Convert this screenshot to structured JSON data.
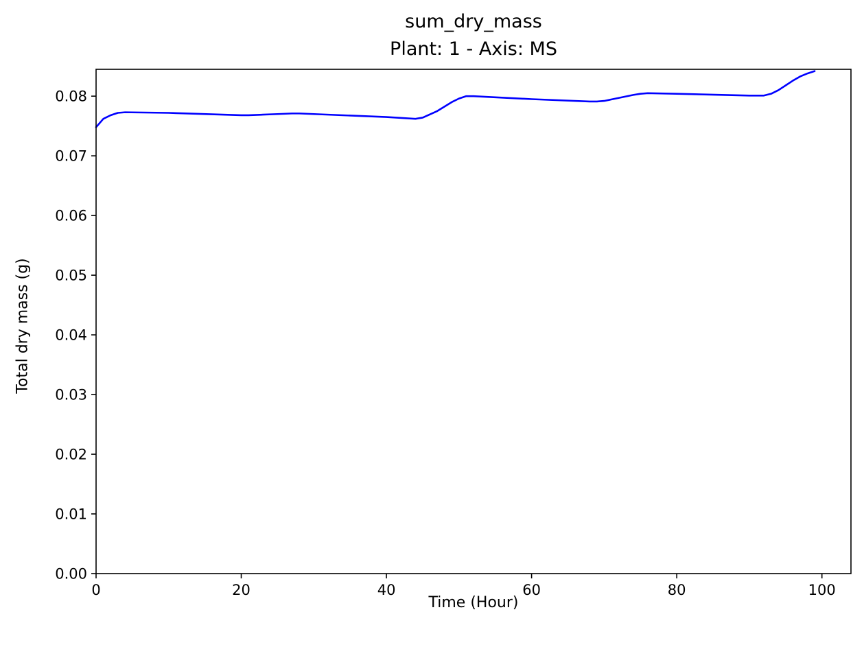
{
  "chart_data": {
    "type": "line",
    "title": "sum_dry_mass",
    "subtitle": "Plant: 1 - Axis: MS",
    "xlabel": "Time (Hour)",
    "ylabel": "Total dry mass (g)",
    "xlim": [
      0,
      104
    ],
    "ylim": [
      0,
      0.0845
    ],
    "xticks": [
      0,
      20,
      40,
      60,
      80,
      100
    ],
    "xtick_labels": [
      "0",
      "20",
      "40",
      "60",
      "80",
      "100"
    ],
    "yticks": [
      0,
      0.01,
      0.02,
      0.03,
      0.04,
      0.05,
      0.06,
      0.07,
      0.08
    ],
    "ytick_labels": [
      "0.00",
      "0.01",
      "0.02",
      "0.03",
      "0.04",
      "0.05",
      "0.06",
      "0.07",
      "0.08"
    ],
    "grid": false,
    "legend": "none",
    "series": [
      {
        "color": "#0000ff",
        "x": [
          0,
          1,
          2,
          3,
          4,
          10,
          20,
          21,
          23,
          25,
          27,
          28,
          30,
          40,
          44,
          45,
          47,
          49,
          50,
          51,
          52,
          60,
          68,
          69,
          70,
          72,
          74,
          75,
          76,
          80,
          90,
          92,
          93,
          94,
          95,
          96,
          97,
          98,
          99
        ],
        "y": [
          0.0748,
          0.0762,
          0.0768,
          0.0772,
          0.0773,
          0.0772,
          0.0768,
          0.0768,
          0.0769,
          0.077,
          0.0771,
          0.0771,
          0.077,
          0.0765,
          0.0762,
          0.0764,
          0.0775,
          0.079,
          0.0796,
          0.08,
          0.08,
          0.0795,
          0.0791,
          0.0791,
          0.0792,
          0.0797,
          0.0802,
          0.0804,
          0.0805,
          0.0804,
          0.0801,
          0.0801,
          0.0804,
          0.081,
          0.0818,
          0.0826,
          0.0833,
          0.0838,
          0.0842
        ]
      }
    ]
  }
}
